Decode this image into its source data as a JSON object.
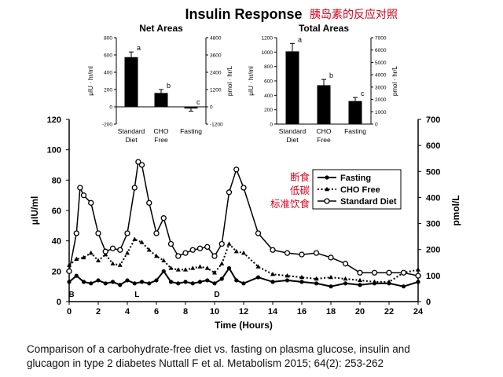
{
  "figure": {
    "title": "Insulin Response",
    "title_cn": "胰岛素的反应对照",
    "caption_line1": "Comparison of a carbohydrate-free diet vs. fasting on plasma glucose, insulin and",
    "caption_line2": "glucagon in type 2 diabetes Nuttall F et al. Metabolism 2015; 64(2): 253-262"
  },
  "colors": {
    "title_cn": "#d9001b",
    "annotation_cn": "#d9001b",
    "ink": "#000000"
  },
  "chart_data": [
    {
      "type": "bar",
      "title": "Net Areas",
      "categories": [
        "Standard Diet",
        "CHO Free",
        "Fasting"
      ],
      "category_lines": [
        [
          "Standard",
          "Diet"
        ],
        [
          "CHO",
          "Free"
        ],
        [
          "Fasting"
        ]
      ],
      "values": [
        575,
        160,
        -20
      ],
      "errors": [
        60,
        40,
        30
      ],
      "letters": [
        "a",
        "b",
        "c"
      ],
      "ylabel_left": "μIU · hr/ml",
      "ylabel_right": "pmol · hr/L",
      "ylim": [
        -200,
        800
      ],
      "yticks": [
        "-200",
        "0",
        "200",
        "400",
        "600",
        "800"
      ],
      "ylim_right": [
        -1200,
        4800
      ],
      "yticks_right": [
        "-1200",
        "0",
        "1200",
        "2400",
        "3600",
        "4800"
      ]
    },
    {
      "type": "bar",
      "title": "Total Areas",
      "categories": [
        "Standard Diet",
        "CHO Free",
        "Fasting"
      ],
      "category_lines": [
        [
          "Standard",
          "Diet"
        ],
        [
          "CHO",
          "Free"
        ],
        [
          "Fasting"
        ]
      ],
      "values": [
        1010,
        540,
        320
      ],
      "errors": [
        110,
        80,
        50
      ],
      "letters": [
        "a",
        "b",
        "c"
      ],
      "ylabel_left": "μIU · hr/ml",
      "ylabel_right": "pmol · hr/L",
      "ylim": [
        0,
        1200
      ],
      "yticks": [
        "0",
        "200",
        "400",
        "600",
        "800",
        "1000",
        "1200"
      ],
      "ylim_right": [
        0,
        7000
      ],
      "yticks_right": [
        "0",
        "1000",
        "2000",
        "3000",
        "4000",
        "5000",
        "6000",
        "7000"
      ]
    },
    {
      "type": "line",
      "xlabel": "Time (Hours)",
      "ylabel_left": "μIU/ml",
      "ylabel_right": "pmol/L",
      "xlim": [
        0,
        24
      ],
      "xticks": [
        "0",
        "2",
        "4",
        "6",
        "8",
        "10",
        "12",
        "14",
        "16",
        "18",
        "20",
        "22",
        "24"
      ],
      "ylim": [
        0,
        120
      ],
      "yticks": [
        "0",
        "20",
        "40",
        "60",
        "80",
        "100",
        "120"
      ],
      "ylim_right": [
        0,
        700
      ],
      "yticks_right": [
        "0",
        "100",
        "200",
        "300",
        "400",
        "500",
        "600",
        "700"
      ],
      "meal_markers": [
        {
          "label": "B",
          "x": 0
        },
        {
          "label": "L",
          "x": 4.5
        },
        {
          "label": "D",
          "x": 10
        }
      ],
      "legend": [
        "Fasting",
        "CHO Free",
        "Standard Diet"
      ],
      "annotation_cn": [
        "断食",
        "低碳",
        "标准饮食"
      ],
      "series": [
        {
          "name": "Standard Diet",
          "style": "open-circle-solid",
          "x": [
            0,
            0.5,
            0.75,
            1,
            1.5,
            2,
            2.5,
            3,
            3.5,
            4,
            4.5,
            4.75,
            5,
            5.5,
            6,
            6.5,
            7,
            7.5,
            8,
            8.5,
            9,
            9.5,
            10,
            10.5,
            11,
            11.5,
            12,
            13,
            14,
            15,
            16,
            17,
            18,
            19,
            20,
            21,
            22,
            23,
            24
          ],
          "y": [
            20,
            45,
            75,
            70,
            65,
            45,
            33,
            35,
            34,
            45,
            75,
            92,
            90,
            65,
            45,
            55,
            38,
            30,
            32,
            34,
            35,
            36,
            30,
            38,
            72,
            87,
            75,
            45,
            34,
            32,
            31,
            32,
            29,
            25,
            19,
            19,
            19,
            19,
            17
          ]
        },
        {
          "name": "CHO Free",
          "style": "filled-triangle-dotted",
          "x": [
            0,
            0.5,
            1,
            1.5,
            2,
            2.5,
            3,
            3.5,
            4,
            4.5,
            5,
            5.5,
            6,
            6.5,
            7,
            7.5,
            8,
            8.5,
            9,
            9.5,
            10,
            10.5,
            11,
            11.5,
            12,
            13,
            14,
            15,
            16,
            17,
            18,
            19,
            20,
            21,
            22,
            23,
            24
          ],
          "y": [
            24,
            28,
            29,
            32,
            27,
            31,
            25,
            24,
            32,
            41,
            39,
            34,
            30,
            27,
            22,
            21,
            21,
            22,
            23,
            22,
            19,
            25,
            38,
            33,
            32,
            23,
            18,
            17,
            16,
            15,
            16,
            15,
            14,
            13,
            13,
            19,
            21
          ]
        },
        {
          "name": "Fasting",
          "style": "filled-circle-solid",
          "x": [
            0,
            0.5,
            1,
            1.5,
            2,
            2.5,
            3,
            3.5,
            4,
            4.5,
            5,
            5.5,
            6,
            6.5,
            7,
            7.5,
            8,
            8.5,
            9,
            9.5,
            10,
            10.5,
            11,
            11.5,
            12,
            13,
            14,
            15,
            16,
            17,
            18,
            19,
            20,
            21,
            22,
            23,
            24
          ],
          "y": [
            13,
            17,
            13,
            12,
            14,
            12,
            13,
            11,
            14,
            12,
            13,
            12,
            14,
            20,
            13,
            12,
            13,
            12,
            13,
            14,
            12,
            15,
            22,
            14,
            12,
            16,
            13,
            14,
            13,
            12,
            10,
            12,
            11,
            12,
            12,
            10,
            13
          ]
        }
      ]
    }
  ]
}
